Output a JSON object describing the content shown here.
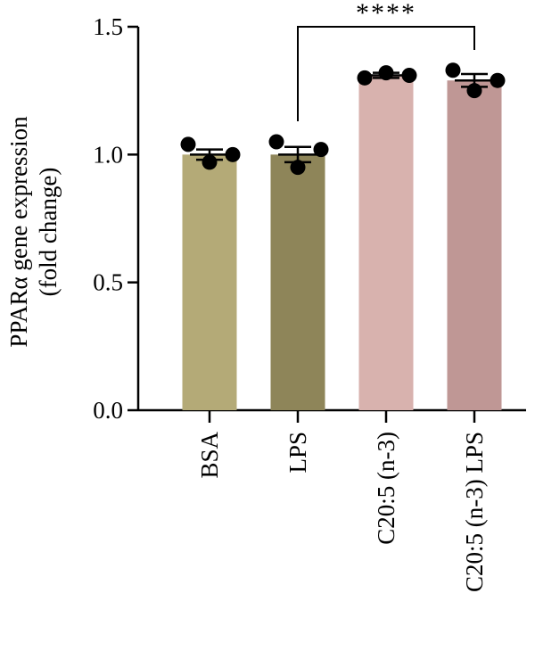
{
  "chart_data": {
    "type": "bar",
    "title": "",
    "ylabel_line1": "PPARα gene expression",
    "ylabel_line2": "(fold change)",
    "xlabel": "",
    "ylim": [
      0,
      1.5
    ],
    "yticks": [
      0.0,
      0.5,
      1.0,
      1.5
    ],
    "ytick_labels": [
      "0.0",
      "0.5",
      "1.0",
      "1.5"
    ],
    "grid": false,
    "categories": [
      "BSA",
      "LPS",
      "C20:5 (n-3)",
      "C20:5 (n-3) LPS"
    ],
    "values": [
      1.0,
      1.0,
      1.31,
      1.29
    ],
    "errors": [
      0.02,
      0.03,
      0.01,
      0.025
    ],
    "points": [
      [
        1.04,
        0.97,
        1.0
      ],
      [
        1.05,
        0.95,
        1.02
      ],
      [
        1.3,
        1.32,
        1.31
      ],
      [
        1.33,
        1.25,
        1.29
      ]
    ],
    "colors": [
      "#b4aa77",
      "#8e8559",
      "#d8b2ae",
      "#bf9795"
    ],
    "significance": [
      {
        "from": 1,
        "to": 3,
        "label": "****"
      }
    ]
  }
}
